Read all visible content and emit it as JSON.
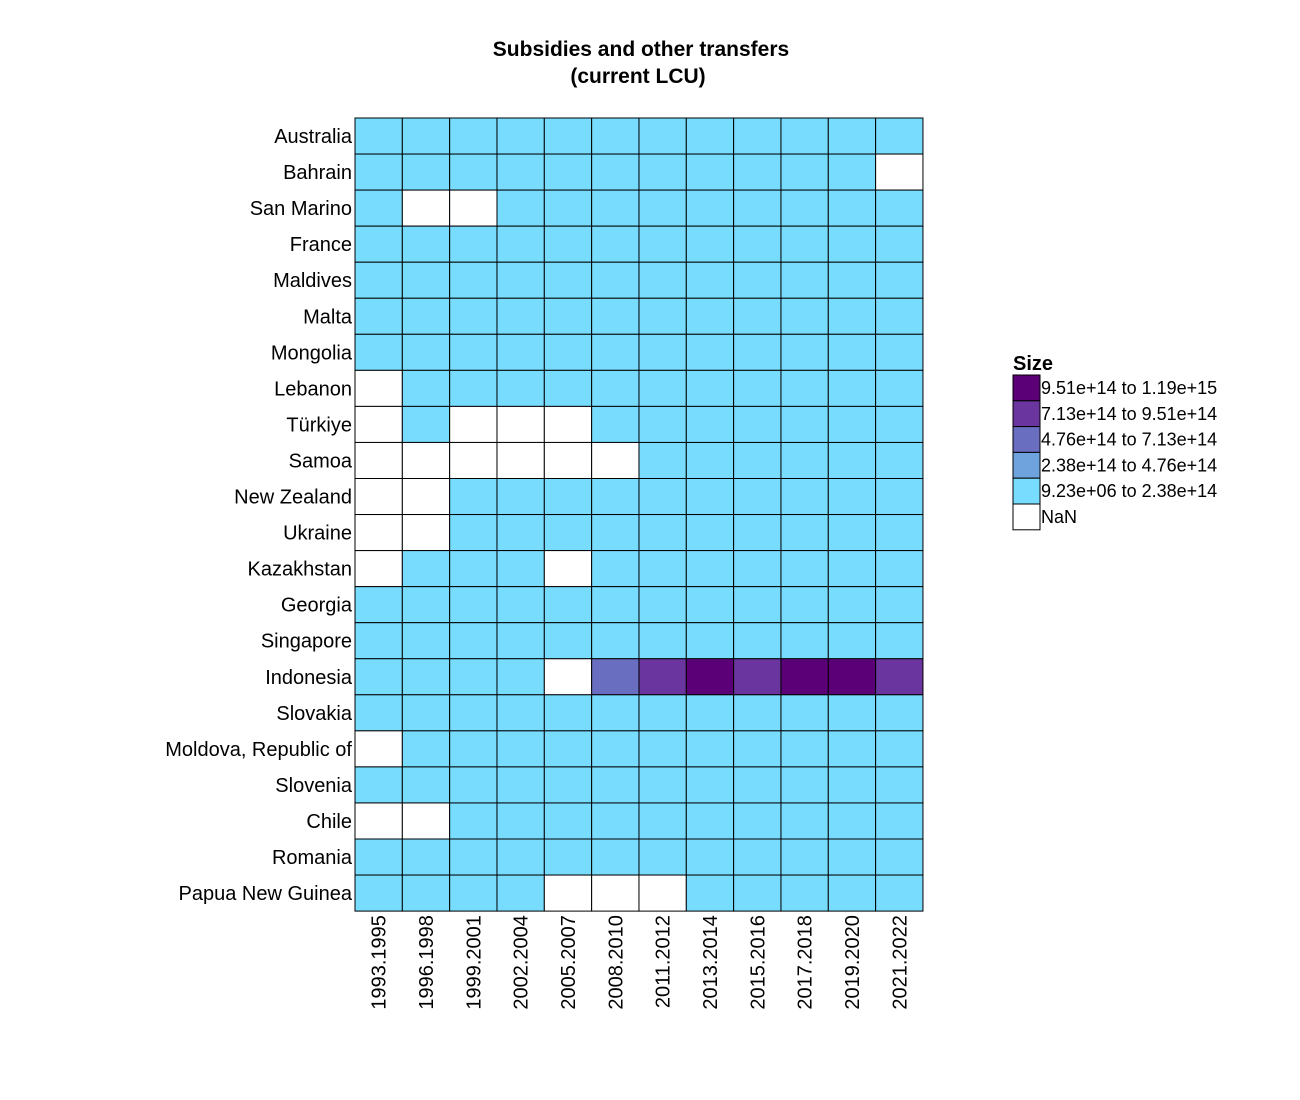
{
  "chart_data": {
    "type": "heatmap",
    "title": [
      "Subsidies and other transfers",
      "(current LCU)"
    ],
    "x_categories": [
      "1993.1995",
      "1996.1998",
      "1999.2001",
      "2002.2004",
      "2005.2007",
      "2008.2010",
      "2011.2012",
      "2013.2014",
      "2015.2016",
      "2017.2018",
      "2019.2020",
      "2021.2022"
    ],
    "y_categories": [
      "Australia",
      "Bahrain",
      "San Marino",
      "France",
      "Maldives",
      "Malta",
      "Mongolia",
      "Lebanon",
      "Türkiye",
      "Samoa",
      "New Zealand",
      "Ukraine",
      "Kazakhstan",
      "Georgia",
      "Singapore",
      "Indonesia",
      "Slovakia",
      "Moldova, Republic of",
      "Slovenia",
      "Chile",
      "Romania",
      "Papua New Guinea"
    ],
    "cell_bins": [
      [
        0,
        0,
        0,
        0,
        0,
        0,
        0,
        0,
        0,
        0,
        0,
        0
      ],
      [
        0,
        0,
        0,
        0,
        0,
        0,
        0,
        0,
        0,
        0,
        0,
        null
      ],
      [
        0,
        null,
        null,
        0,
        0,
        0,
        0,
        0,
        0,
        0,
        0,
        0
      ],
      [
        0,
        0,
        0,
        0,
        0,
        0,
        0,
        0,
        0,
        0,
        0,
        0
      ],
      [
        0,
        0,
        0,
        0,
        0,
        0,
        0,
        0,
        0,
        0,
        0,
        0
      ],
      [
        0,
        0,
        0,
        0,
        0,
        0,
        0,
        0,
        0,
        0,
        0,
        0
      ],
      [
        0,
        0,
        0,
        0,
        0,
        0,
        0,
        0,
        0,
        0,
        0,
        0
      ],
      [
        null,
        0,
        0,
        0,
        0,
        0,
        0,
        0,
        0,
        0,
        0,
        0
      ],
      [
        null,
        0,
        null,
        null,
        null,
        0,
        0,
        0,
        0,
        0,
        0,
        0
      ],
      [
        null,
        null,
        null,
        null,
        null,
        null,
        0,
        0,
        0,
        0,
        0,
        0
      ],
      [
        null,
        null,
        0,
        0,
        0,
        0,
        0,
        0,
        0,
        0,
        0,
        0
      ],
      [
        null,
        null,
        0,
        0,
        0,
        0,
        0,
        0,
        0,
        0,
        0,
        0
      ],
      [
        null,
        0,
        0,
        0,
        null,
        0,
        0,
        0,
        0,
        0,
        0,
        0
      ],
      [
        0,
        0,
        0,
        0,
        0,
        0,
        0,
        0,
        0,
        0,
        0,
        0
      ],
      [
        0,
        0,
        0,
        0,
        0,
        0,
        0,
        0,
        0,
        0,
        0,
        0
      ],
      [
        0,
        0,
        0,
        0,
        null,
        2,
        3,
        4,
        3,
        4,
        4,
        3
      ],
      [
        0,
        0,
        0,
        0,
        0,
        0,
        0,
        0,
        0,
        0,
        0,
        0
      ],
      [
        null,
        0,
        0,
        0,
        0,
        0,
        0,
        0,
        0,
        0,
        0,
        0
      ],
      [
        0,
        0,
        0,
        0,
        0,
        0,
        0,
        0,
        0,
        0,
        0,
        0
      ],
      [
        null,
        null,
        0,
        0,
        0,
        0,
        0,
        0,
        0,
        0,
        0,
        0
      ],
      [
        0,
        0,
        0,
        0,
        0,
        0,
        0,
        0,
        0,
        0,
        0,
        0
      ],
      [
        0,
        0,
        0,
        0,
        null,
        null,
        null,
        0,
        0,
        0,
        0,
        0
      ]
    ],
    "legend": {
      "title": "Size",
      "placement": "right",
      "bins": [
        {
          "label": "9.51e+14 to 1.19e+15",
          "color": "#5c0078"
        },
        {
          "label": "7.13e+14 to 9.51e+14",
          "color": "#6a359e"
        },
        {
          "label": "4.76e+14 to 7.13e+14",
          "color": "#6a6ec1"
        },
        {
          "label": "2.38e+14 to 4.76e+14",
          "color": "#6fa3dd"
        },
        {
          "label": "9.23e+06 to 2.38e+14",
          "color": "#78dcfe"
        }
      ],
      "nan_label": "NaN",
      "nan_color": "#ffffff"
    }
  }
}
